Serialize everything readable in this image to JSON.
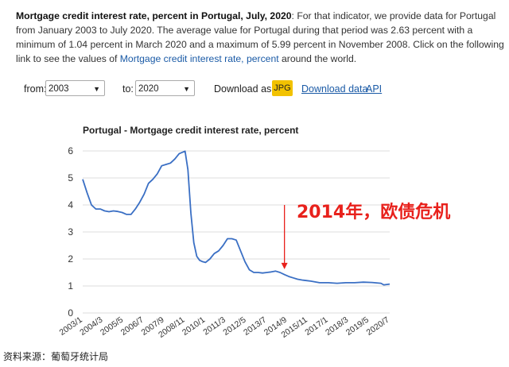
{
  "intro": {
    "title": "Mortgage credit interest rate, percent in Portugal, July, 2020",
    "body": ": For that indicator, we provide data for Portugal from January 2003 to July 2020. The average value for Portugal during that period was 2.63 percent with a minimum of 1.04 percent in March 2020 and a maximum of 5.99 percent in November 2008. Click on the following link to see the values of ",
    "link_text": "Mortgage credit interest rate, percent",
    "tail": " around the world."
  },
  "controls": {
    "from_label": "from:",
    "from_value": "2003",
    "to_label": "to:",
    "to_value": "2020",
    "download_label": "Download as:",
    "jpg_label": "JPG",
    "download_data_label": "Download data",
    "api_label": "API"
  },
  "chart_data": {
    "type": "line",
    "title": "Portugal - Mortgage credit interest rate, percent",
    "ylim": [
      0,
      6
    ],
    "yticks": [
      0,
      1,
      2,
      3,
      4,
      5,
      6
    ],
    "x_range": [
      "2003/1",
      "2020/7"
    ],
    "xtick_labels": [
      "2003/1",
      "2004/3",
      "2005/5",
      "2006/7",
      "2007/9",
      "2008/11",
      "2010/1",
      "2011/3",
      "2012/5",
      "2013/7",
      "2014/9",
      "2015/11",
      "2017/1",
      "2018/3",
      "2019/5",
      "2020/7"
    ],
    "grid": true,
    "line_color": "#3a6fc4",
    "series": [
      {
        "x": [
          "2003/1",
          "2003/4",
          "2003/7",
          "2003/10",
          "2004/1",
          "2004/4",
          "2004/7",
          "2004/10",
          "2005/1",
          "2005/4",
          "2005/7",
          "2005/10",
          "2006/1",
          "2006/4",
          "2006/7",
          "2006/10",
          "2007/1",
          "2007/4",
          "2007/7",
          "2007/10",
          "2008/1",
          "2008/4",
          "2008/7",
          "2008/11",
          "2009/1",
          "2009/3",
          "2009/5",
          "2009/7",
          "2009/9",
          "2009/11",
          "2010/1",
          "2010/4",
          "2010/7",
          "2010/10",
          "2011/1",
          "2011/4",
          "2011/7",
          "2011/10",
          "2012/1",
          "2012/4",
          "2012/7",
          "2012/10",
          "2013/1",
          "2013/4",
          "2013/7",
          "2013/10",
          "2014/1",
          "2014/4",
          "2014/7",
          "2014/10",
          "2015/1",
          "2015/4",
          "2015/7",
          "2015/10",
          "2016/1",
          "2016/7",
          "2017/1",
          "2017/7",
          "2018/1",
          "2018/7",
          "2019/1",
          "2019/7",
          "2020/1",
          "2020/3",
          "2020/7"
        ],
        "y": [
          4.95,
          4.45,
          4.0,
          3.85,
          3.85,
          3.78,
          3.75,
          3.78,
          3.76,
          3.72,
          3.65,
          3.65,
          3.85,
          4.1,
          4.4,
          4.8,
          4.95,
          5.15,
          5.45,
          5.5,
          5.55,
          5.7,
          5.9,
          5.99,
          5.3,
          3.7,
          2.6,
          2.1,
          1.95,
          1.9,
          1.87,
          2.0,
          2.2,
          2.3,
          2.5,
          2.75,
          2.75,
          2.7,
          2.3,
          1.9,
          1.6,
          1.5,
          1.5,
          1.48,
          1.5,
          1.52,
          1.55,
          1.5,
          1.42,
          1.35,
          1.3,
          1.25,
          1.22,
          1.2,
          1.18,
          1.12,
          1.12,
          1.1,
          1.12,
          1.12,
          1.14,
          1.13,
          1.1,
          1.04,
          1.07
        ]
      }
    ],
    "annotation": {
      "text": "2014年，欧债危机",
      "color": "#e8211c",
      "arrow_top_y": 4.0,
      "arrow_target_x": "2014/7",
      "arrow_target_y": 1.62
    }
  },
  "source": "资料来源：葡萄牙统计局"
}
